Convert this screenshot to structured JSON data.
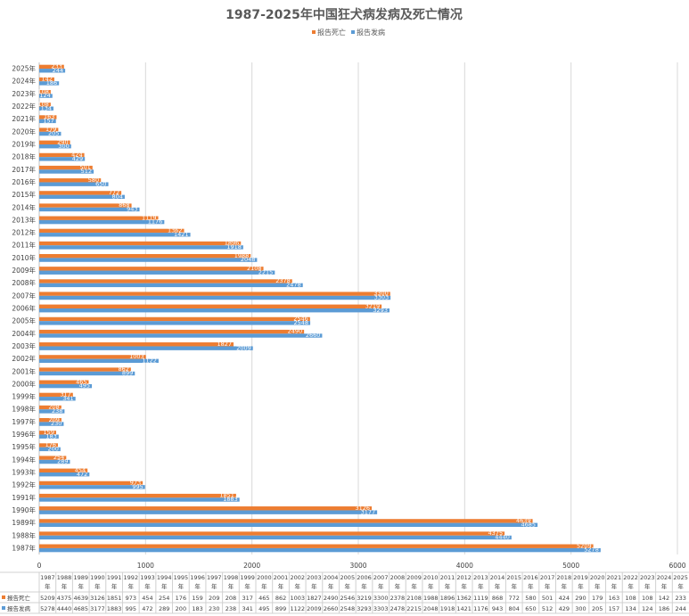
{
  "chart_data": {
    "type": "bar",
    "orientation": "horizontal",
    "title": "1987-2025年中国狂犬病发病及死亡情况",
    "categories": [
      "1987年",
      "1988年",
      "1989年",
      "1990年",
      "1991年",
      "1992年",
      "1993年",
      "1994年",
      "1995年",
      "1996年",
      "1997年",
      "1998年",
      "1999年",
      "2000年",
      "2001年",
      "2002年",
      "2003年",
      "2004年",
      "2005年",
      "2006年",
      "2007年",
      "2008年",
      "2009年",
      "2010年",
      "2011年",
      "2012年",
      "2013年",
      "2014年",
      "2015年",
      "2016年",
      "2017年",
      "2018年",
      "2019年",
      "2020年",
      "2021年",
      "2022年",
      "2023年",
      "2024年",
      "2025年"
    ],
    "table_headers": [
      "1987年",
      "1988年",
      "1989年",
      "1990年",
      "1991年",
      "1992年",
      "1993年",
      "1994年",
      "1995年",
      "1996年",
      "1997年",
      "1998年",
      "1999年",
      "2000年",
      "2001年",
      "2002年",
      "2003年",
      "2004年",
      "2005年",
      "2006年",
      "2007年",
      "2008年",
      "2009年",
      "2010年",
      "2011年",
      "2012年",
      "2013年",
      "2014年",
      "2015年",
      "2016年",
      "2017年",
      "2018年",
      "2019年",
      "2020年",
      "2021年",
      "2022年",
      "2023年",
      "2024年",
      "2025年"
    ],
    "series": [
      {
        "name": "报告死亡",
        "color": "#ED7D31",
        "values": [
          5209,
          4375,
          4639,
          3126,
          1851,
          973,
          454,
          254,
          176,
          159,
          209,
          208,
          317,
          465,
          862,
          1003,
          1827,
          2490,
          2546,
          3219,
          3300,
          2378,
          2108,
          1988,
          1896,
          1362,
          1119,
          868,
          772,
          580,
          501,
          424,
          290,
          179,
          163,
          108,
          108,
          142,
          233
        ]
      },
      {
        "name": "报告发病",
        "color": "#5B9BD5",
        "values": [
          5278,
          4440,
          4685,
          3177,
          1883,
          995,
          472,
          289,
          200,
          183,
          230,
          238,
          341,
          495,
          899,
          1122,
          2009,
          2660,
          2548,
          3293,
          3303,
          2478,
          2215,
          2048,
          1918,
          1421,
          1176,
          943,
          804,
          650,
          512,
          429,
          300,
          205,
          157,
          134,
          124,
          186,
          244
        ]
      }
    ],
    "x_ticks": [
      "0",
      "1000",
      "2000",
      "3000",
      "4000",
      "5000",
      "6000"
    ],
    "xlim": [
      0,
      6000
    ],
    "grid": true,
    "legend_position": "top-center",
    "data_table": true
  }
}
